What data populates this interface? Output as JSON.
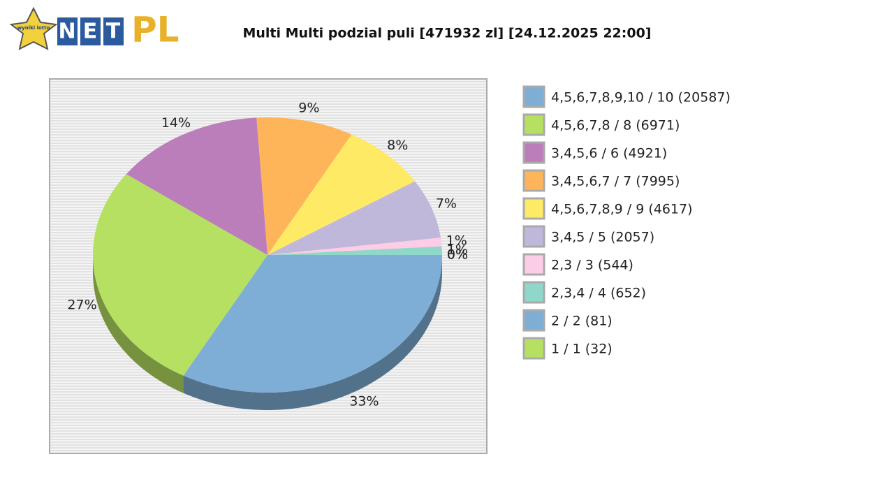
{
  "logo": {
    "badge": "wyniki lotto",
    "letters": [
      "N",
      "E",
      "T"
    ],
    "suffix": "PL"
  },
  "chart_data": {
    "type": "pie",
    "title": "Multi Multi podzial puli [471932 zl] [24.12.2025 22:00]",
    "categories": [
      "4,5,6,7,8,9,10 / 10 (20587)",
      "4,5,6,7,8 / 8 (6971)",
      "3,4,5,6 / 6 (4921)",
      "3,4,5,6,7 / 7 (7995)",
      "4,5,6,7,8,9 / 9 (4617)",
      "3,4,5 / 5 (2057)",
      "2,3 / 3 (544)",
      "2,3,4 / 4 (652)",
      "2 / 2 (81)",
      "1 / 1 (32)"
    ],
    "values": [
      33,
      27,
      14,
      9,
      8,
      7,
      1,
      1,
      0,
      0
    ],
    "value_labels": [
      "33%",
      "27%",
      "14%",
      "9%",
      "8%",
      "7%",
      "1%",
      "1%",
      "0%",
      "0%"
    ],
    "colors": [
      "#7eaed5",
      "#b5e061",
      "#bb7ebb",
      "#feb55a",
      "#feea65",
      "#bfb8da",
      "#fdcce5",
      "#8fd7c9",
      "#7eaed5",
      "#b5e061"
    ],
    "legend": "right"
  }
}
